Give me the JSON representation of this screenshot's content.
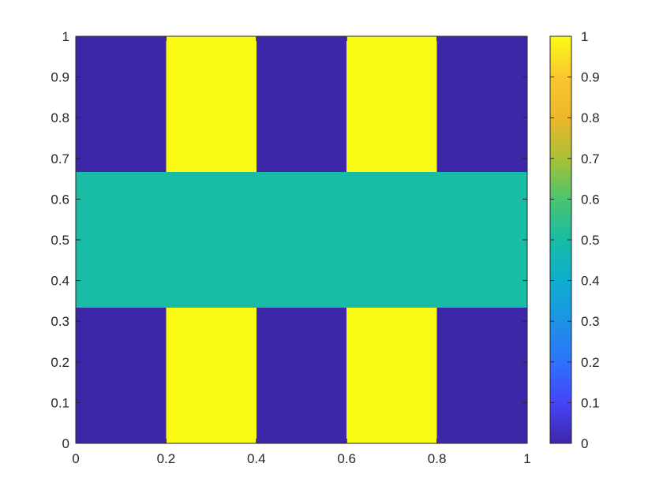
{
  "chart_data": {
    "type": "heatmap",
    "title": "",
    "xlabel": "",
    "ylabel": "",
    "xlim": [
      0,
      1
    ],
    "ylim": [
      0,
      1
    ],
    "x_ticks": [
      "0",
      "0.2",
      "0.4",
      "0.6",
      "0.8",
      "1"
    ],
    "y_ticks": [
      "0",
      "0.1",
      "0.2",
      "0.3",
      "0.4",
      "0.5",
      "0.6",
      "0.7",
      "0.8",
      "0.9",
      "1"
    ],
    "grid": false,
    "colormap": "parula",
    "colorbar": {
      "placement": "right",
      "range": [
        0,
        1
      ],
      "ticks": [
        "0",
        "0.1",
        "0.2",
        "0.3",
        "0.4",
        "0.5",
        "0.6",
        "0.7",
        "0.8",
        "0.9",
        "1"
      ],
      "colors": [
        "#3e26a8",
        "#4743f8",
        "#2d72fc",
        "#1d93e6",
        "#0eaece",
        "#19bca4",
        "#4bc46e",
        "#a9c036",
        "#edb72b",
        "#fac72f",
        "#f9fb15"
      ]
    },
    "regions": [
      {
        "x": [
          0,
          0.2
        ],
        "y": [
          0,
          0.333
        ],
        "value": 0
      },
      {
        "x": [
          0.2,
          0.4
        ],
        "y": [
          0,
          0.333
        ],
        "value": 1
      },
      {
        "x": [
          0.4,
          0.6
        ],
        "y": [
          0,
          0.333
        ],
        "value": 0
      },
      {
        "x": [
          0.6,
          0.8
        ],
        "y": [
          0,
          0.333
        ],
        "value": 1
      },
      {
        "x": [
          0.8,
          1
        ],
        "y": [
          0,
          0.333
        ],
        "value": 0
      },
      {
        "x": [
          0,
          1
        ],
        "y": [
          0.333,
          0.667
        ],
        "value": 0.5
      },
      {
        "x": [
          0,
          0.2
        ],
        "y": [
          0.667,
          1
        ],
        "value": 0
      },
      {
        "x": [
          0.2,
          0.4
        ],
        "y": [
          0.667,
          1
        ],
        "value": 1
      },
      {
        "x": [
          0.4,
          0.6
        ],
        "y": [
          0.667,
          1
        ],
        "value": 0
      },
      {
        "x": [
          0.6,
          0.8
        ],
        "y": [
          0.667,
          1
        ],
        "value": 1
      },
      {
        "x": [
          0.8,
          1
        ],
        "y": [
          0.667,
          1
        ],
        "value": 0
      }
    ],
    "colors": {
      "low": "#3e26a8",
      "mid": "#13bdb8",
      "high": "#f9fb15",
      "axis": "#262626"
    }
  }
}
